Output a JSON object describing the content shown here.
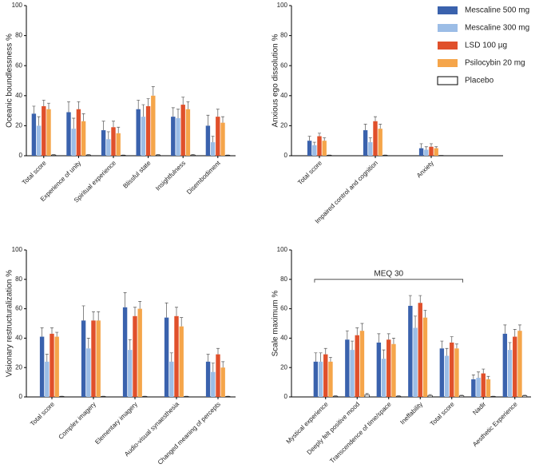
{
  "chart_data": [
    {
      "type": "bar",
      "ylabel": "Oceanic boundlessness %",
      "categories": [
        "Total score",
        "Experience of unity",
        "Spiritual experience",
        "Blissful state",
        "Insightfulness",
        "Disembodiment"
      ],
      "series": [
        {
          "name": "Mescaline 500 mg",
          "color": "#3a62ad",
          "values": [
            28,
            29,
            17,
            31,
            26,
            20
          ],
          "errors": [
            5,
            7,
            6,
            6,
            6,
            7
          ]
        },
        {
          "name": "Mescaline 300 mg",
          "color": "#9cbde6",
          "values": [
            20,
            18,
            11,
            26,
            25,
            9
          ],
          "errors": [
            6,
            7,
            5,
            8,
            6,
            4
          ]
        },
        {
          "name": "LSD 100 µg",
          "color": "#e0502b",
          "values": [
            33,
            31,
            19,
            33,
            34,
            26
          ],
          "errors": [
            4,
            5,
            4,
            5,
            5,
            5
          ]
        },
        {
          "name": "Psilocybin 20 mg",
          "color": "#f5a54a",
          "values": [
            31,
            23,
            15,
            40,
            31,
            22
          ],
          "errors": [
            4,
            5,
            4,
            6,
            5,
            4
          ]
        },
        {
          "name": "Placebo",
          "color": "#ffffff",
          "values": [
            0.5,
            0.5,
            0.3,
            0.5,
            0.5,
            0.3
          ],
          "errors": [
            0.3,
            0.3,
            0.2,
            0.3,
            0.3,
            0.2
          ]
        }
      ],
      "ylim": [
        0,
        100
      ],
      "yticks": [
        0,
        20,
        40,
        60,
        80,
        100
      ]
    },
    {
      "type": "bar",
      "ylabel": "Anxious ego dissolution %",
      "categories": [
        "Total score",
        "Impaired control and cognition",
        "Anxiety"
      ],
      "series": [
        {
          "name": "Mescaline 500 mg",
          "color": "#3a62ad",
          "values": [
            10,
            17,
            5
          ],
          "errors": [
            3,
            4,
            3
          ]
        },
        {
          "name": "Mescaline 300 mg",
          "color": "#9cbde6",
          "values": [
            7,
            9,
            4
          ],
          "errors": [
            2,
            3,
            2
          ]
        },
        {
          "name": "LSD 100 µg",
          "color": "#e0502b",
          "values": [
            13,
            23,
            6
          ],
          "errors": [
            2,
            3,
            2
          ]
        },
        {
          "name": "Psilocybin 20 mg",
          "color": "#f5a54a",
          "values": [
            10,
            18,
            5
          ],
          "errors": [
            2,
            3,
            1
          ]
        },
        {
          "name": "Placebo",
          "color": "#ffffff",
          "values": [
            0.3,
            0.3,
            0.2
          ],
          "errors": [
            0.2,
            0.2,
            0.1
          ]
        }
      ],
      "ylim": [
        0,
        100
      ],
      "yticks": [
        0,
        20,
        40,
        60,
        80,
        100
      ]
    },
    {
      "type": "bar",
      "ylabel": "Visionary restructuralization %",
      "categories": [
        "Total score",
        "Complex imagery",
        "Elementary imagery",
        "Audio-visual synaesthesia",
        "Changed meaning of percepts"
      ],
      "series": [
        {
          "name": "Mescaline 500 mg",
          "color": "#3a62ad",
          "values": [
            41,
            52,
            61,
            54,
            24
          ],
          "errors": [
            6,
            10,
            10,
            10,
            5
          ]
        },
        {
          "name": "Mescaline 300 mg",
          "color": "#9cbde6",
          "values": [
            24,
            33,
            32,
            24,
            17
          ],
          "errors": [
            5,
            7,
            7,
            6,
            6
          ]
        },
        {
          "name": "LSD 100 µg",
          "color": "#e0502b",
          "values": [
            43,
            52,
            55,
            55,
            29
          ],
          "errors": [
            4,
            6,
            6,
            6,
            4
          ]
        },
        {
          "name": "Psilocybin 20 mg",
          "color": "#f5a54a",
          "values": [
            41,
            52,
            60,
            48,
            20
          ],
          "errors": [
            3,
            6,
            5,
            6,
            4
          ]
        },
        {
          "name": "Placebo",
          "color": "#ffffff",
          "values": [
            0.3,
            0.3,
            0.3,
            0.3,
            0.3
          ],
          "errors": [
            0.2,
            0.2,
            0.2,
            0.2,
            0.2
          ]
        }
      ],
      "ylim": [
        0,
        100
      ],
      "yticks": [
        0,
        20,
        40,
        60,
        80,
        100
      ]
    },
    {
      "type": "bar",
      "ylabel": "Scale maximum %",
      "annotation": "MEQ 30",
      "categories": [
        "Mystical experience",
        "Deeply felt positive mood",
        "Transcendence of time/space",
        "Ineffability",
        "Total score",
        "Nadir",
        "Aesthetic Experience"
      ],
      "series": [
        {
          "name": "Mescaline 500 mg",
          "color": "#3a62ad",
          "values": [
            24,
            39,
            37,
            62,
            33,
            12,
            43
          ],
          "errors": [
            6,
            6,
            6,
            7,
            5,
            3,
            6
          ]
        },
        {
          "name": "Mescaline 300 mg",
          "color": "#9cbde6",
          "values": [
            24,
            32,
            26,
            47,
            28,
            13,
            32
          ],
          "errors": [
            6,
            6,
            6,
            8,
            5,
            4,
            5
          ]
        },
        {
          "name": "LSD 100 µg",
          "color": "#e0502b",
          "values": [
            29,
            42,
            39,
            64,
            37,
            16,
            41
          ],
          "errors": [
            4,
            5,
            4,
            5,
            4,
            3,
            5
          ]
        },
        {
          "name": "Psilocybin 20 mg",
          "color": "#f5a54a",
          "values": [
            24,
            45,
            36,
            54,
            33,
            12,
            45
          ],
          "errors": [
            3,
            5,
            4,
            5,
            3,
            2,
            4
          ]
        },
        {
          "name": "Placebo",
          "color": "#ffffff",
          "values": [
            0.5,
            1.5,
            0.5,
            1,
            0.8,
            0.3,
            0.8
          ],
          "errors": [
            0.3,
            0.8,
            0.3,
            0.6,
            0.4,
            0.2,
            0.4
          ]
        }
      ],
      "ylim": [
        0,
        100
      ],
      "yticks": [
        0,
        20,
        40,
        60,
        80,
        100
      ]
    }
  ]
}
